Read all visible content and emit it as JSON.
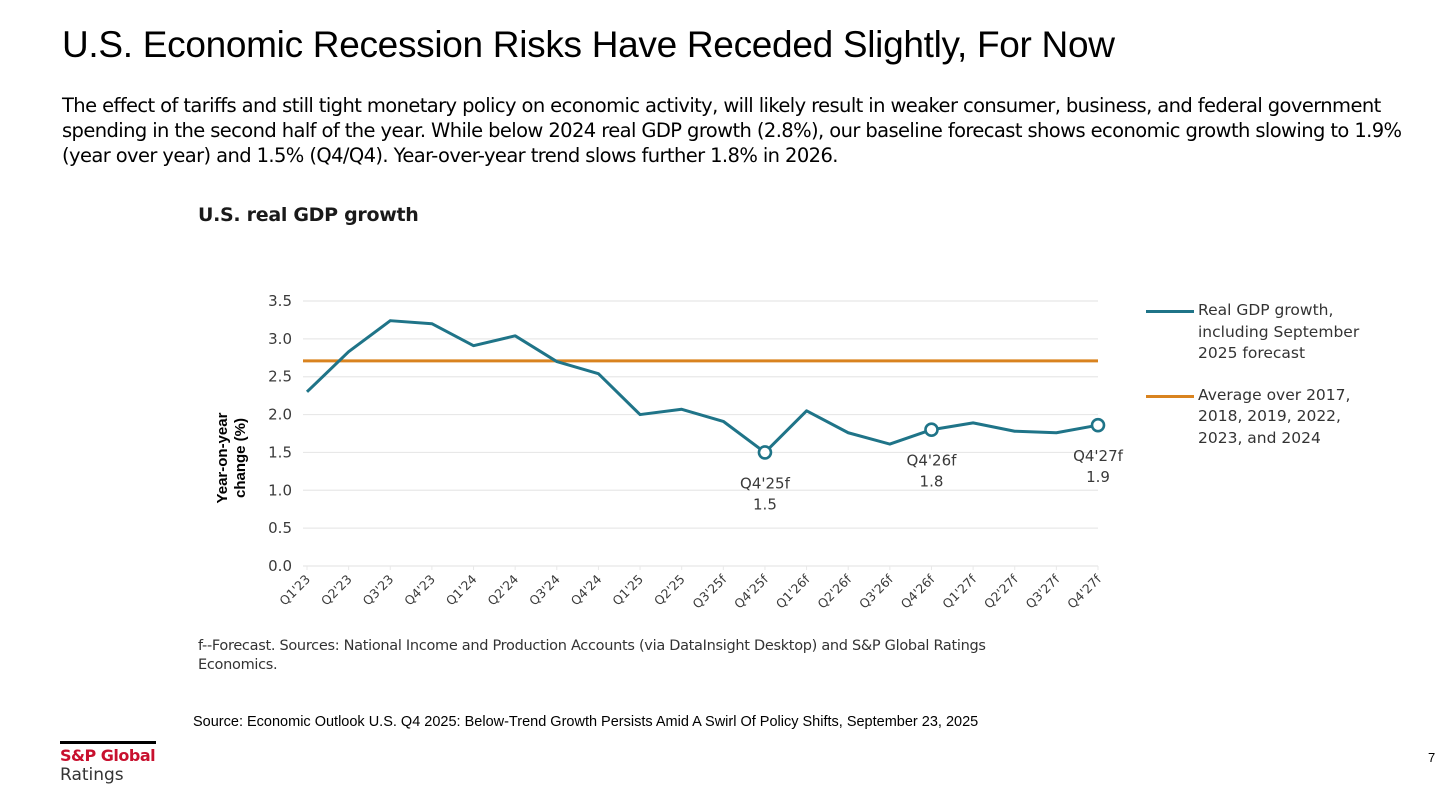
{
  "slide": {
    "title": "U.S. Economic Recession Risks Have Receded Slightly, For Now",
    "body": "The effect of tariffs and still tight monetary policy on economic activity, will likely result in weaker consumer, business, and federal government spending in the second half of the year. While below 2024 real GDP growth (2.8%), our baseline forecast shows economic growth slowing to 1.9% (year over year) and 1.5% (Q4/Q4). Year-over-year trend slows further 1.8% in 2026.",
    "chart_note": "f--Forecast. Sources: National Income and Production Accounts (via DataInsight Desktop) and S&P Global Ratings Economics.",
    "source": "Source: Economic Outlook U.S. Q4 2025: Below-Trend Growth Persists Amid A Swirl Of Policy Shifts, September 23, 2025",
    "logo_brand": "S&P Global",
    "logo_sub": "Ratings",
    "page_number": "7"
  },
  "colors": {
    "gdp_line": "#1f7488",
    "average_line": "#d9831f",
    "gridline": "#e8e8e8",
    "brand_red": "#c8102e"
  },
  "chart_data": {
    "type": "line",
    "title": "U.S. real GDP growth",
    "xlabel": "",
    "ylabel": "Year-on-year change (%)",
    "ylim": [
      0,
      3.5
    ],
    "yticks": [
      0.0,
      0.5,
      1.0,
      1.5,
      2.0,
      2.5,
      3.0,
      3.5
    ],
    "ytick_labels": [
      "0.0",
      "0.5",
      "1.0",
      "1.5",
      "2.0",
      "2.5",
      "3.0",
      "3.5"
    ],
    "grid": true,
    "legend_position": "right",
    "categories": [
      "Q1'23",
      "Q2'23",
      "Q3'23",
      "Q4'23",
      "Q1'24",
      "Q2'24",
      "Q3'24",
      "Q4'24",
      "Q1'25",
      "Q2'25",
      "Q3'25f",
      "Q4'25f",
      "Q1'26f",
      "Q2'26f",
      "Q3'26f",
      "Q4'26f",
      "Q1'27f",
      "Q2'27f",
      "Q3'27f",
      "Q4'27f"
    ],
    "series": [
      {
        "name": "Real GDP growth, including September 2025 forecast",
        "values": [
          2.3,
          2.83,
          3.24,
          3.2,
          2.91,
          3.04,
          2.7,
          2.54,
          2.0,
          2.07,
          1.91,
          1.5,
          2.05,
          1.76,
          1.61,
          1.8,
          1.89,
          1.78,
          1.76,
          1.86
        ]
      },
      {
        "name": "Average over 2017, 2018, 2019, 2022, 2023, and 2024",
        "values": [
          2.71,
          2.71,
          2.71,
          2.71,
          2.71,
          2.71,
          2.71,
          2.71,
          2.71,
          2.71,
          2.71,
          2.71,
          2.71,
          2.71,
          2.71,
          2.71,
          2.71,
          2.71,
          2.71,
          2.71
        ]
      }
    ],
    "annotations": [
      {
        "category": "Q4'25f",
        "label": "Q4'25f",
        "value_label": "1.5",
        "position": "below"
      },
      {
        "category": "Q4'26f",
        "label": "Q4'26f",
        "value_label": "1.8",
        "position": "below"
      },
      {
        "category": "Q4'27f",
        "label": "Q4'27f",
        "value_label": "1.9",
        "position": "below"
      }
    ]
  }
}
